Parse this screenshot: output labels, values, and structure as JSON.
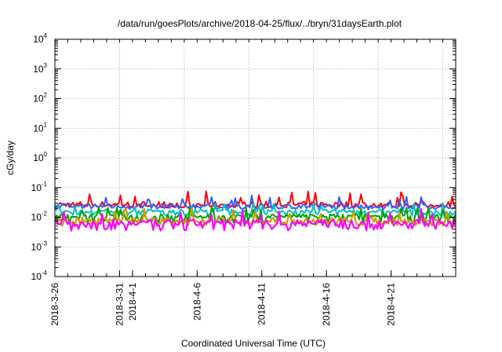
{
  "chart_data": {
    "type": "line",
    "title": "/data/run/goesPlots/archive/2018-04-25/flux/../bryn/31daysEarth.plot",
    "xlabel": "Coordinated Universal Time (UTC)",
    "ylabel": "cGy/day",
    "y_scale": "log",
    "ylim": [
      0.0001,
      10000
    ],
    "xlim": [
      "2018-03-26",
      "2018-04-26"
    ],
    "grid": true,
    "legend": "none",
    "x_ticks": [
      "2018-3-26",
      "2018-3-31",
      "2018-4-1",
      "2018-4-6",
      "2018-4-11",
      "2018-4-16",
      "2018-4-21"
    ],
    "y_ticks": [
      {
        "base": "10",
        "exp": "-4",
        "value": 0.0001
      },
      {
        "base": "10",
        "exp": "-3",
        "value": 0.001
      },
      {
        "base": "10",
        "exp": "-2",
        "value": 0.01
      },
      {
        "base": "10",
        "exp": "-1",
        "value": 0.1
      },
      {
        "base": "10",
        "exp": "0",
        "value": 1
      },
      {
        "base": "10",
        "exp": "1",
        "value": 10
      },
      {
        "base": "10",
        "exp": "2",
        "value": 100
      },
      {
        "base": "10",
        "exp": "3",
        "value": 1000
      },
      {
        "base": "10",
        "exp": "4",
        "value": 10000
      }
    ],
    "series": [
      {
        "color": "#ff0000",
        "typical": 0.027,
        "min": 0.021,
        "max": 0.075
      },
      {
        "color": "#3060ff",
        "typical": 0.024,
        "min": 0.018,
        "max": 0.055
      },
      {
        "color": "#00c0c0",
        "typical": 0.016,
        "min": 0.011,
        "max": 0.03
      },
      {
        "color": "#00a000",
        "typical": 0.011,
        "min": 0.006,
        "max": 0.022
      },
      {
        "color": "#c8a000",
        "typical": 0.008,
        "min": 0.005,
        "max": 0.02
      },
      {
        "color": "#ff00ff",
        "typical": 0.0065,
        "min": 0.0035,
        "max": 0.02
      }
    ]
  }
}
